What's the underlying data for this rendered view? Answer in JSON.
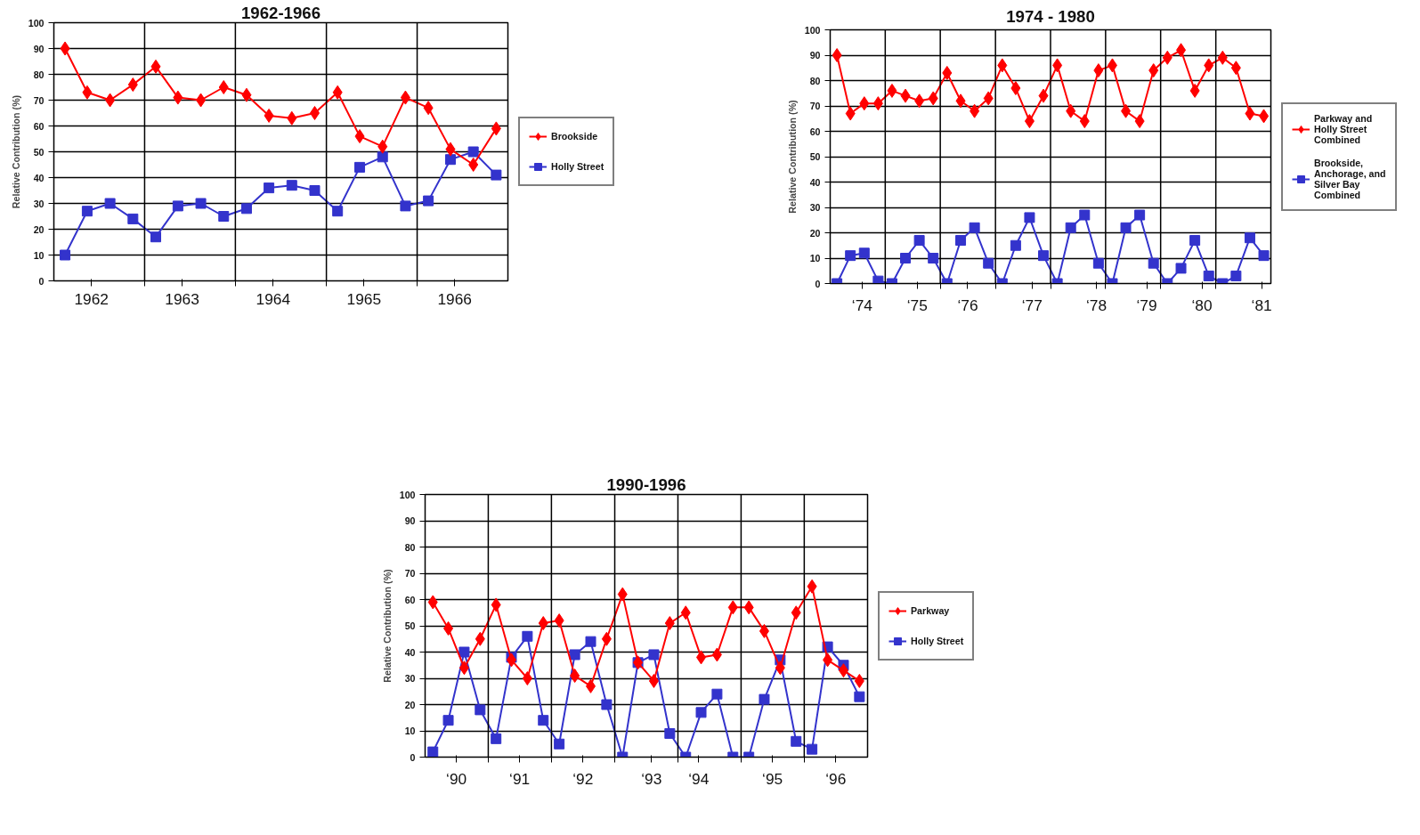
{
  "chart_data": [
    {
      "type": "line",
      "title": "1962-1966",
      "ylabel": "Relative Contribution (%)",
      "x": [
        "1962-02-15",
        "1962-05-15",
        "1962-08-15",
        "1962-11-15",
        "1963-02-15",
        "1963-05-15",
        "1963-08-15",
        "1963-11-15",
        "1964-02-15",
        "1964-05-15",
        "1964-08-15",
        "1964-11-15",
        "1965-02-15",
        "1965-05-15",
        "1965-08-15",
        "1965-11-15",
        "1966-02-15",
        "1966-05-15",
        "1966-08-15",
        "1966-11-15"
      ],
      "xlim": [
        "1962-01-01",
        "1967-01-01"
      ],
      "ylim": [
        0,
        100
      ],
      "yticks": [
        0,
        10,
        20,
        30,
        40,
        50,
        60,
        70,
        80,
        90,
        100
      ],
      "xticks": [
        {
          "value": "1962-06-01",
          "label": "1962"
        },
        {
          "value": "1963-01-01",
          "label": null
        },
        {
          "value": "1963-06-01",
          "label": "1963"
        },
        {
          "value": "1964-01-01",
          "label": null
        },
        {
          "value": "1964-06-01",
          "label": "1964"
        },
        {
          "value": "1965-01-01",
          "label": null
        },
        {
          "value": "1965-06-01",
          "label": "1965"
        },
        {
          "value": "1966-01-01",
          "label": null
        },
        {
          "value": "1966-06-01",
          "label": "1966"
        }
      ],
      "ref_lines": [
        {
          "axis": "x",
          "value": "1963-01-01",
          "color": "#000000"
        },
        {
          "axis": "x",
          "value": "1964-01-01",
          "color": "#000000"
        },
        {
          "axis": "x",
          "value": "1965-01-01",
          "color": "#000000"
        },
        {
          "axis": "x",
          "value": "1966-01-01",
          "color": "#000000"
        }
      ],
      "grid": "y",
      "legend": "right",
      "series": [
        {
          "name": "Brookside",
          "color": "#ff0000",
          "marker": "diamond",
          "values": [
            90,
            73,
            70,
            76,
            83,
            71,
            70,
            75,
            72,
            64,
            63,
            65,
            73,
            56,
            52,
            71,
            67,
            51,
            45,
            59
          ]
        },
        {
          "name": "Holly Street",
          "color": "#3333cc",
          "marker": "square",
          "values": [
            10,
            27,
            30,
            24,
            17,
            29,
            30,
            25,
            28,
            36,
            37,
            35,
            27,
            44,
            48,
            29,
            31,
            47,
            50,
            41
          ]
        }
      ]
    },
    {
      "type": "line",
      "title": "1974 - 1980",
      "ylabel": "Relative Contribution (%)",
      "x": [
        "1974-02-15",
        "1974-05-15",
        "1974-08-15",
        "1974-11-15",
        "1975-02-15",
        "1975-05-15",
        "1975-08-15",
        "1975-11-15",
        "1976-02-15",
        "1976-05-15",
        "1976-08-15",
        "1976-11-15",
        "1977-02-15",
        "1977-05-15",
        "1977-08-15",
        "1977-11-15",
        "1978-02-15",
        "1978-05-15",
        "1978-08-15",
        "1978-11-15",
        "1979-02-15",
        "1979-05-15",
        "1979-08-15",
        "1979-11-15",
        "1980-02-15",
        "1980-05-15",
        "1980-08-15",
        "1980-11-15",
        "1981-02-15",
        "1981-05-15",
        "1981-08-15",
        "1981-11-15"
      ],
      "xlim": [
        "1974-01-01",
        "1982-01-01"
      ],
      "ylim": [
        0,
        100
      ],
      "yticks": [
        0,
        10,
        20,
        30,
        40,
        50,
        60,
        70,
        80,
        90,
        100
      ],
      "xticks": [
        {
          "value": "1974-08-01",
          "label": "‘74"
        },
        {
          "value": "1975-01-01",
          "label": null
        },
        {
          "value": "1975-08-01",
          "label": "‘75"
        },
        {
          "value": "1976-01-01",
          "label": null
        },
        {
          "value": "1976-07-01",
          "label": "‘76"
        },
        {
          "value": "1977-01-01",
          "label": null
        },
        {
          "value": "1977-09-01",
          "label": "‘77"
        },
        {
          "value": "1978-01-01",
          "label": null
        },
        {
          "value": "1978-11-01",
          "label": "‘78"
        },
        {
          "value": "1979-01-01",
          "label": null
        },
        {
          "value": "1979-10-01",
          "label": "‘79"
        },
        {
          "value": "1980-01-01",
          "label": null
        },
        {
          "value": "1980-10-01",
          "label": "‘80"
        },
        {
          "value": "1981-01-01",
          "label": null
        },
        {
          "value": "1981-11-01",
          "label": "‘81"
        }
      ],
      "ref_lines": [
        {
          "axis": "x",
          "value": "1975-01-01",
          "color": "#000000"
        },
        {
          "axis": "x",
          "value": "1976-01-01",
          "color": "#000000"
        },
        {
          "axis": "x",
          "value": "1977-01-01",
          "color": "#000000"
        },
        {
          "axis": "x",
          "value": "1978-01-01",
          "color": "#000000"
        },
        {
          "axis": "x",
          "value": "1979-01-01",
          "color": "#000000"
        },
        {
          "axis": "x",
          "value": "1980-01-01",
          "color": "#000000"
        },
        {
          "axis": "x",
          "value": "1981-01-01",
          "color": "#000000"
        }
      ],
      "grid": "y",
      "legend": "right",
      "series": [
        {
          "name": "Parkway and Holly Street Combined",
          "color": "#ff0000",
          "marker": "diamond",
          "values": [
            90,
            67,
            71,
            71,
            76,
            74,
            72,
            73,
            83,
            72,
            68,
            73,
            86,
            77,
            64,
            74,
            86,
            68,
            64,
            84,
            86,
            68,
            64,
            84,
            89,
            92,
            76,
            86,
            89,
            85,
            67,
            66
          ]
        },
        {
          "name": "Brookside, Anchorage, and Silver Bay Combined",
          "color": "#3333cc",
          "marker": "square",
          "values": [
            0,
            11,
            12,
            1,
            0,
            10,
            17,
            10,
            0,
            17,
            22,
            8,
            0,
            15,
            26,
            11,
            0,
            22,
            27,
            8,
            0,
            22,
            27,
            8,
            0,
            6,
            17,
            3,
            0,
            3,
            18,
            11
          ]
        }
      ]
    },
    {
      "type": "line",
      "title": "1990-1996",
      "ylabel": "Relative Contribution (%)",
      "x": [
        "1990-02-15",
        "1990-05-15",
        "1990-08-15",
        "1990-11-15",
        "1991-02-15",
        "1991-05-15",
        "1991-08-15",
        "1991-11-15",
        "1992-02-15",
        "1992-05-15",
        "1992-08-15",
        "1992-11-15",
        "1993-02-15",
        "1993-05-15",
        "1993-08-15",
        "1993-11-15",
        "1994-02-15",
        "1994-05-15",
        "1994-08-15",
        "1994-11-15",
        "1995-02-15",
        "1995-05-15",
        "1995-08-15",
        "1995-11-15",
        "1996-02-15",
        "1996-05-15",
        "1996-08-15",
        "1996-11-15"
      ],
      "xlim": [
        "1990-01-01",
        "1997-01-01"
      ],
      "ylim": [
        0,
        100
      ],
      "yticks": [
        0,
        10,
        20,
        30,
        40,
        50,
        60,
        70,
        80,
        90,
        100
      ],
      "xticks": [
        {
          "value": "1990-07-01",
          "label": "‘90"
        },
        {
          "value": "1991-01-01",
          "label": null
        },
        {
          "value": "1991-07-01",
          "label": "‘91"
        },
        {
          "value": "1992-01-01",
          "label": null
        },
        {
          "value": "1992-07-01",
          "label": "‘92"
        },
        {
          "value": "1993-01-01",
          "label": null
        },
        {
          "value": "1993-08-01",
          "label": "‘93"
        },
        {
          "value": "1994-01-01",
          "label": null
        },
        {
          "value": "1994-05-01",
          "label": "‘94"
        },
        {
          "value": "1995-01-01",
          "label": null
        },
        {
          "value": "1995-07-01",
          "label": "‘95"
        },
        {
          "value": "1996-01-01",
          "label": null
        },
        {
          "value": "1996-07-01",
          "label": "‘96"
        }
      ],
      "ref_lines": [
        {
          "axis": "x",
          "value": "1991-01-01",
          "color": "#000000"
        },
        {
          "axis": "x",
          "value": "1992-01-01",
          "color": "#000000"
        },
        {
          "axis": "x",
          "value": "1993-01-01",
          "color": "#000000"
        },
        {
          "axis": "x",
          "value": "1994-01-01",
          "color": "#000000"
        },
        {
          "axis": "x",
          "value": "1995-01-01",
          "color": "#000000"
        },
        {
          "axis": "x",
          "value": "1996-01-01",
          "color": "#000000"
        }
      ],
      "grid": "y",
      "legend": "right",
      "series": [
        {
          "name": "Parkway",
          "color": "#ff0000",
          "marker": "diamond",
          "values": [
            59,
            49,
            34,
            45,
            58,
            37,
            30,
            51,
            52,
            31,
            27,
            45,
            62,
            36,
            29,
            51,
            55,
            38,
            39,
            57,
            57,
            48,
            34,
            55,
            65,
            37,
            33,
            29
          ]
        },
        {
          "name": "Holly Street",
          "color": "#3333cc",
          "marker": "square",
          "values": [
            2,
            14,
            40,
            18,
            7,
            38,
            46,
            14,
            5,
            39,
            44,
            20,
            0,
            36,
            39,
            9,
            0,
            17,
            24,
            0,
            0,
            22,
            37,
            6,
            3,
            42,
            35,
            23
          ]
        }
      ]
    }
  ]
}
